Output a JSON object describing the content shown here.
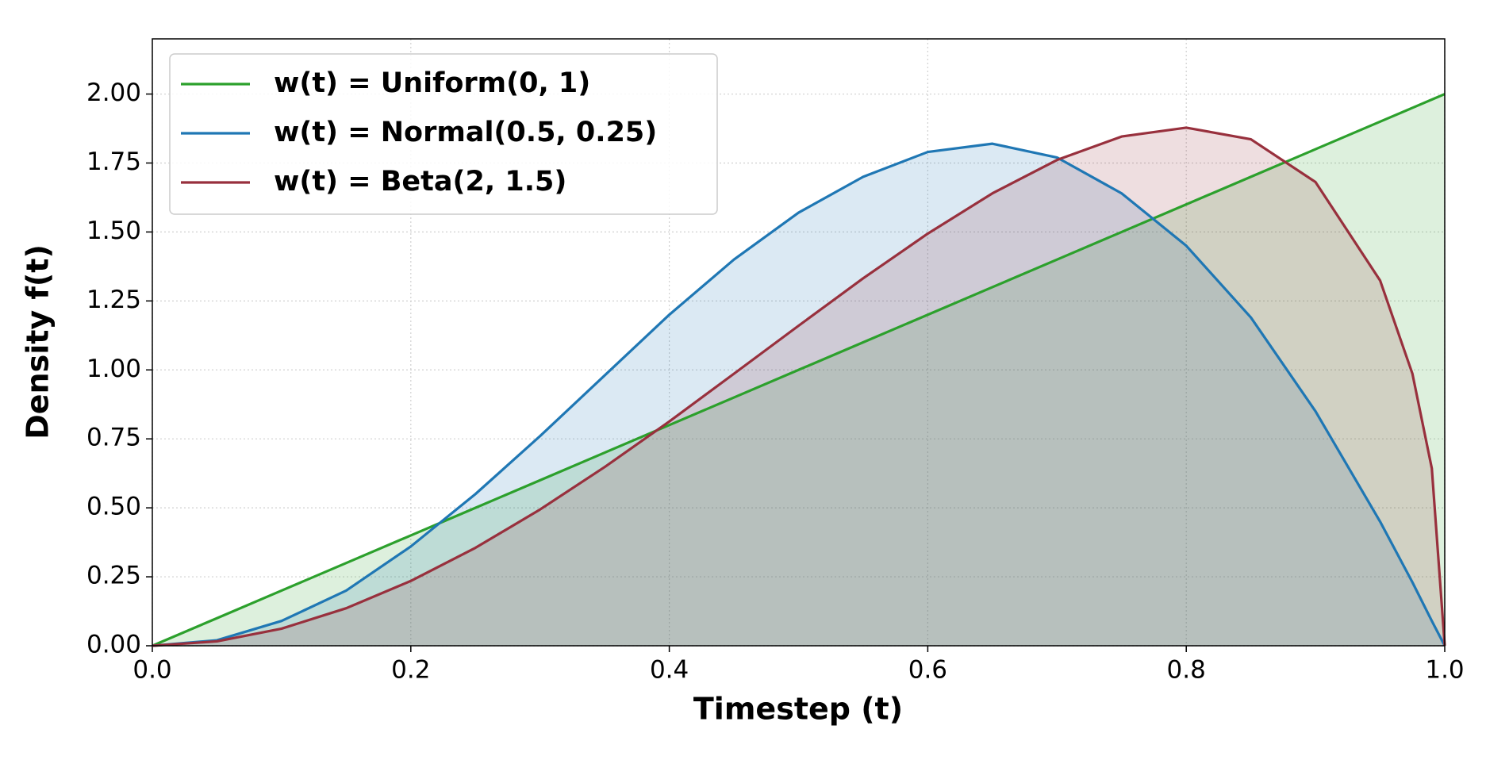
{
  "chart_data": {
    "type": "line",
    "xlabel": "Timestep (t)",
    "ylabel": "Density f(t)",
    "x": [
      0,
      0.05,
      0.1,
      0.15,
      0.2,
      0.25,
      0.3,
      0.35,
      0.4,
      0.45,
      0.5,
      0.55,
      0.6,
      0.65,
      0.7,
      0.75,
      0.8,
      0.85,
      0.9,
      0.95,
      0.975,
      0.99,
      1.0
    ],
    "series": [
      {
        "name": "w(t) = Uniform(0, 1)",
        "color": "#2ca02c",
        "values": [
          0,
          0.1,
          0.2,
          0.3,
          0.4,
          0.5,
          0.6,
          0.7,
          0.8,
          0.9,
          1.0,
          1.1,
          1.2,
          1.3,
          1.4,
          1.5,
          1.6,
          1.7,
          1.8,
          1.9,
          1.95,
          1.98,
          2.0
        ]
      },
      {
        "name": "w(t) = Normal(0.5, 0.25)",
        "color": "#1f77b4",
        "values": [
          0,
          0.02,
          0.09,
          0.2,
          0.36,
          0.55,
          0.76,
          0.98,
          1.2,
          1.4,
          1.57,
          1.7,
          1.79,
          1.82,
          1.77,
          1.64,
          1.45,
          1.19,
          0.85,
          0.45,
          0.23,
          0.09,
          0
        ]
      },
      {
        "name": "w(t) = Beta(2, 1.5)",
        "color": "#98303d",
        "values": [
          0,
          0.016,
          0.062,
          0.136,
          0.235,
          0.355,
          0.494,
          0.648,
          0.813,
          0.986,
          1.16,
          1.332,
          1.494,
          1.64,
          1.761,
          1.846,
          1.878,
          1.836,
          1.681,
          1.324,
          0.986,
          0.643,
          0
        ]
      }
    ],
    "xlim": [
      0,
      1
    ],
    "xticks": [
      {
        "value": 0,
        "label": "0.0"
      },
      0.2,
      0.4,
      0.6,
      0.8,
      {
        "value": 1,
        "label": "1.0"
      }
    ],
    "ylim": [
      0,
      2.2
    ],
    "yticks": [
      {
        "value": 0,
        "label": "0.00"
      },
      0.25,
      {
        "value": 0.5,
        "label": "0.50"
      },
      0.75,
      {
        "value": 1,
        "label": "1.00"
      },
      1.25,
      {
        "value": 1.5,
        "label": "1.50"
      },
      1.75,
      {
        "value": 2,
        "label": "2.00"
      }
    ],
    "grid": true,
    "legend": "upper-left"
  }
}
